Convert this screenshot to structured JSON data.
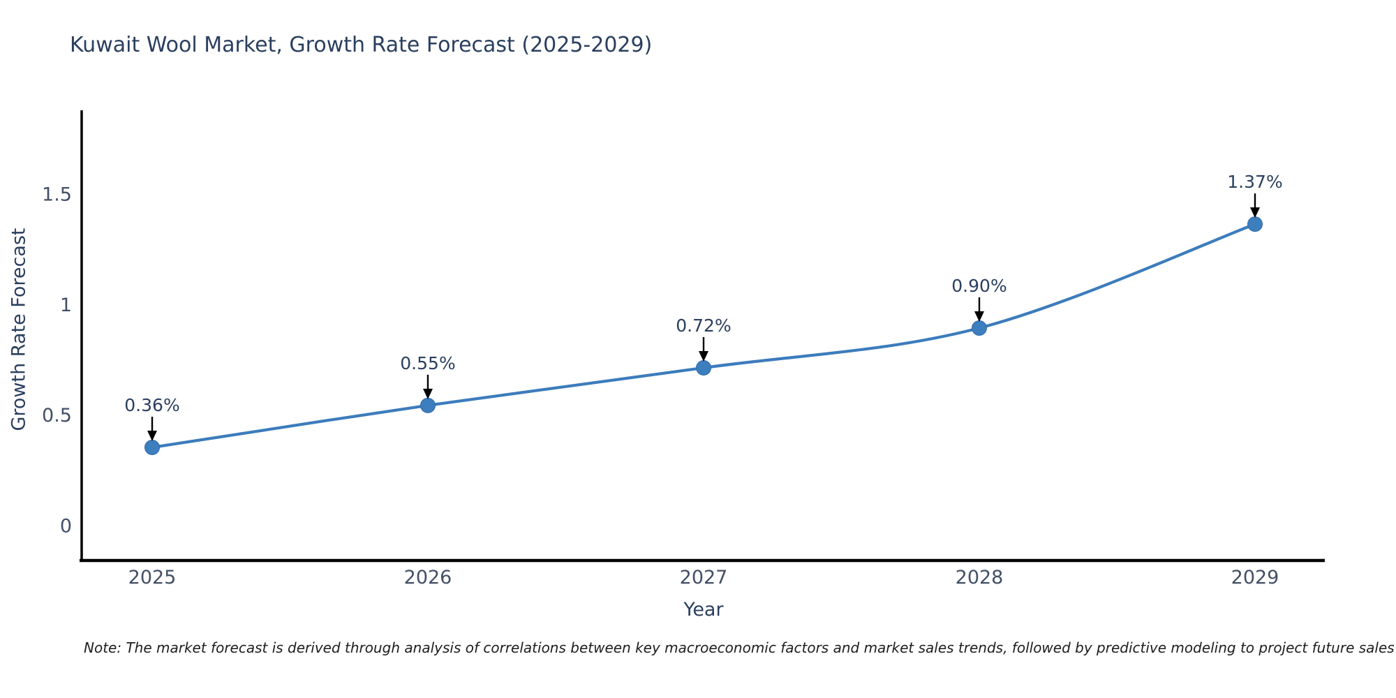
{
  "chart": {
    "title": "Kuwait Wool Market, Growth Rate Forecast (2025-2029)",
    "note": "Note: The market forecast is derived through analysis of correlations between key macroeconomic factors and market sales trends, followed by predictive modeling to project future sales",
    "colors": {
      "line": "#3c7cbc",
      "marker_fill": "#3d7ebf",
      "marker_stroke": "#2f6ba6",
      "axis": "#000000",
      "arrow": "#000000",
      "title_text": "#2a3f5f",
      "tick_text": "#424f66",
      "axis_title_text": "#2a3f5f",
      "annotation_text": "#2a3f5f",
      "background": "#ffffff"
    }
  },
  "chart_data": {
    "type": "line",
    "title": "Kuwait Wool Market, Growth Rate Forecast (2025-2029)",
    "x": [
      2025,
      2026,
      2027,
      2028,
      2029
    ],
    "series": [
      {
        "name": "Growth Rate Forecast",
        "values": [
          0.36,
          0.55,
          0.72,
          0.9,
          1.37
        ]
      }
    ],
    "point_labels": [
      "0.36%",
      "0.55%",
      "0.72%",
      "0.90%",
      "1.37%"
    ],
    "xlabel": "Year",
    "ylabel": "Growth Rate Forecast",
    "xtick_labels": [
      "2025",
      "2026",
      "2027",
      "2028",
      "2029"
    ],
    "ytick_values": [
      0,
      0.5,
      1,
      1.5
    ],
    "ytick_labels": [
      "0",
      "0.5",
      "1",
      "1.5"
    ],
    "ylim": [
      -0.16,
      1.89
    ],
    "grid": false,
    "legend": "none",
    "line_shape": "spline",
    "annotation_style": "arrow-down-to-point"
  }
}
